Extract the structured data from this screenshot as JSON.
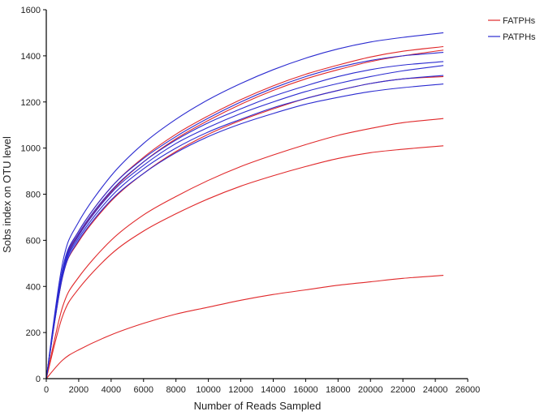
{
  "chart_data": {
    "type": "line",
    "title": "",
    "xlabel": "Number of Reads Sampled",
    "ylabel": "Sobs index on OTU level",
    "xlim": [
      0,
      26000
    ],
    "ylim": [
      0,
      1600
    ],
    "x_ticks": [
      0,
      2000,
      4000,
      6000,
      8000,
      10000,
      12000,
      14000,
      16000,
      18000,
      20000,
      22000,
      24000,
      26000
    ],
    "y_ticks": [
      0,
      200,
      400,
      600,
      800,
      1000,
      1200,
      1400,
      1600
    ],
    "grid": false,
    "legend_position": "top-right",
    "legend": [
      {
        "label": "FATPHs",
        "color": "#e0282a"
      },
      {
        "label": "PATPHs",
        "color": "#2b2bd0"
      }
    ],
    "x": [
      0,
      1000,
      2000,
      4000,
      6000,
      8000,
      10000,
      12000,
      14000,
      16000,
      18000,
      20000,
      22000,
      24500
    ],
    "series": [
      {
        "group": "FATPHs",
        "color": "#e0282a",
        "values": [
          0,
          470,
          640,
          830,
          960,
          1060,
          1140,
          1210,
          1270,
          1320,
          1360,
          1395,
          1420,
          1440
        ]
      },
      {
        "group": "FATPHs",
        "color": "#e0282a",
        "values": [
          0,
          460,
          625,
          810,
          940,
          1040,
          1120,
          1190,
          1250,
          1300,
          1340,
          1375,
          1400,
          1425
        ]
      },
      {
        "group": "FATPHs",
        "color": "#e0282a",
        "values": [
          0,
          440,
          595,
          770,
          890,
          985,
          1060,
          1120,
          1170,
          1215,
          1250,
          1280,
          1300,
          1310
        ]
      },
      {
        "group": "FATPHs",
        "color": "#e0282a",
        "values": [
          0,
          310,
          440,
          600,
          710,
          790,
          860,
          920,
          970,
          1015,
          1055,
          1085,
          1110,
          1128
        ]
      },
      {
        "group": "FATPHs",
        "color": "#e0282a",
        "values": [
          0,
          270,
          390,
          540,
          640,
          715,
          780,
          835,
          880,
          920,
          955,
          980,
          995,
          1010
        ]
      },
      {
        "group": "FATPHs",
        "color": "#e0282a",
        "values": [
          0,
          80,
          125,
          190,
          240,
          280,
          310,
          340,
          365,
          385,
          405,
          420,
          435,
          448
        ]
      },
      {
        "group": "PATPHs",
        "color": "#2b2bd0",
        "values": [
          0,
          500,
          680,
          880,
          1020,
          1125,
          1210,
          1280,
          1340,
          1390,
          1430,
          1460,
          1480,
          1500
        ]
      },
      {
        "group": "PATPHs",
        "color": "#2b2bd0",
        "values": [
          0,
          475,
          640,
          830,
          955,
          1050,
          1130,
          1200,
          1260,
          1310,
          1350,
          1380,
          1400,
          1415
        ]
      },
      {
        "group": "PATPHs",
        "color": "#2b2bd0",
        "values": [
          0,
          465,
          630,
          815,
          940,
          1035,
          1110,
          1170,
          1225,
          1270,
          1310,
          1340,
          1360,
          1375
        ]
      },
      {
        "group": "PATPHs",
        "color": "#2b2bd0",
        "values": [
          0,
          455,
          620,
          805,
          925,
          1020,
          1090,
          1150,
          1200,
          1245,
          1280,
          1310,
          1335,
          1358
        ]
      },
      {
        "group": "PATPHs",
        "color": "#2b2bd0",
        "values": [
          0,
          450,
          610,
          790,
          910,
          1000,
          1070,
          1125,
          1175,
          1215,
          1250,
          1280,
          1300,
          1315
        ]
      },
      {
        "group": "PATPHs",
        "color": "#2b2bd0",
        "values": [
          0,
          440,
          600,
          775,
          890,
          980,
          1050,
          1105,
          1150,
          1190,
          1220,
          1245,
          1262,
          1278
        ]
      }
    ]
  }
}
